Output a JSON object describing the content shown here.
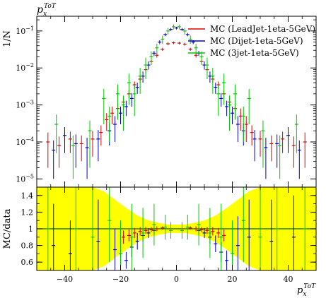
{
  "chart_data": [
    {
      "type": "scatter",
      "title": "p_x^ToT",
      "title_main": "p",
      "title_sub": "x",
      "title_sup": "ToT",
      "ylabel": "1/N",
      "yscale": "log",
      "xlim": [
        -50,
        50
      ],
      "ylim": [
        6e-06,
        0.25
      ],
      "y_ticks": [
        {
          "value": 0.1,
          "label_base": "10",
          "label_exp": "−1"
        },
        {
          "value": 0.01,
          "label_base": "10",
          "label_exp": "−2"
        },
        {
          "value": 0.001,
          "label_base": "10",
          "label_exp": "−3"
        },
        {
          "value": 0.0001,
          "label_base": "10",
          "label_exp": "−4"
        },
        {
          "value": 1e-05,
          "label_base": "10",
          "label_exp": "−5"
        }
      ],
      "legend_position": "top-right",
      "series": [
        {
          "name": "MC (LeadJet-1eta-5GeV)",
          "color": "#e00000",
          "points": [
            [
              -46,
              0.0001,
              8e-05
            ],
            [
              -42,
              8e-05,
              6e-05
            ],
            [
              -38,
              0.00012,
              7e-05
            ],
            [
              -34,
              9e-05,
              6e-05
            ],
            [
              -30,
              0.00012,
              8e-05
            ],
            [
              -27,
              0.00018,
              0.0001
            ],
            [
              -25,
              0.0004,
              0.0002
            ],
            [
              -23,
              0.0006,
              0.0003
            ],
            [
              -21,
              0.0008,
              0.0003
            ],
            [
              -19,
              0.0012,
              0.0004
            ],
            [
              -17,
              0.002,
              0.0005
            ],
            [
              -15,
              0.0035,
              0.0008
            ],
            [
              -13,
              0.005,
              0.001
            ],
            [
              -11,
              0.009,
              0.0015
            ],
            [
              -9,
              0.015,
              0.002
            ],
            [
              -7,
              0.022,
              0.003
            ],
            [
              -5,
              0.032,
              0.003
            ],
            [
              -3,
              0.045,
              0.004
            ],
            [
              -1,
              0.048,
              0.004
            ],
            [
              1,
              0.047,
              0.004
            ],
            [
              3,
              0.044,
              0.004
            ],
            [
              5,
              0.032,
              0.003
            ],
            [
              7,
              0.022,
              0.003
            ],
            [
              9,
              0.015,
              0.002
            ],
            [
              11,
              0.009,
              0.0015
            ],
            [
              13,
              0.005,
              0.001
            ],
            [
              15,
              0.0035,
              0.0008
            ],
            [
              17,
              0.002,
              0.0005
            ],
            [
              19,
              0.0012,
              0.0004
            ],
            [
              21,
              0.0008,
              0.0003
            ],
            [
              23,
              0.0005,
              0.0003
            ],
            [
              25,
              0.0003,
              0.0002
            ],
            [
              27,
              0.00018,
              0.0001
            ],
            [
              30,
              0.00012,
              8e-05
            ],
            [
              34,
              9e-05,
              6e-05
            ],
            [
              38,
              0.00012,
              7e-05
            ],
            [
              42,
              8e-05,
              6e-05
            ],
            [
              46,
              0.0001,
              8e-05
            ]
          ]
        },
        {
          "name": "MC (Dijet-1eta-5GeV)",
          "color": "#0000c8",
          "points": [
            [
              -44,
              6e-05,
              5e-05
            ],
            [
              -40,
              0.00015,
              0.0001
            ],
            [
              -36,
              9e-05,
              7e-05
            ],
            [
              -32,
              7e-05,
              6e-05
            ],
            [
              -28,
              0.00012,
              9e-05
            ],
            [
              -24,
              0.0002,
              0.00012
            ],
            [
              -22,
              0.0003,
              0.0002
            ],
            [
              -20,
              0.0006,
              0.0003
            ],
            [
              -18,
              0.0009,
              0.0004
            ],
            [
              -16,
              0.0015,
              0.0006
            ],
            [
              -14,
              0.003,
              0.001
            ],
            [
              -12,
              0.006,
              0.002
            ],
            [
              -10,
              0.012,
              0.003
            ],
            [
              -8,
              0.025,
              0.004
            ],
            [
              -6,
              0.05,
              0.006
            ],
            [
              -4,
              0.08,
              0.008
            ],
            [
              -2,
              0.11,
              0.01
            ],
            [
              0,
              0.12,
              0.01
            ],
            [
              2,
              0.11,
              0.01
            ],
            [
              4,
              0.08,
              0.008
            ],
            [
              6,
              0.05,
              0.006
            ],
            [
              8,
              0.025,
              0.004
            ],
            [
              10,
              0.012,
              0.003
            ],
            [
              12,
              0.006,
              0.002
            ],
            [
              14,
              0.003,
              0.001
            ],
            [
              16,
              0.0015,
              0.0006
            ],
            [
              18,
              0.0009,
              0.0004
            ],
            [
              20,
              0.0006,
              0.0003
            ],
            [
              22,
              0.0003,
              0.0002
            ],
            [
              24,
              0.0002,
              0.00012
            ],
            [
              28,
              0.00012,
              9e-05
            ],
            [
              32,
              7e-05,
              6e-05
            ],
            [
              36,
              9e-05,
              7e-05
            ],
            [
              40,
              0.00015,
              0.0001
            ],
            [
              44,
              6e-05,
              5e-05
            ]
          ]
        },
        {
          "name": "MC (3jet-1eta-5GeV)",
          "color": "#00c800",
          "points": [
            [
              -43,
              0.0003,
              0.00025
            ],
            [
              -37,
              8e-05,
              7e-05
            ],
            [
              -31,
              0.0002,
              0.00018
            ],
            [
              -26,
              0.0015,
              0.0012
            ],
            [
              -24,
              0.0005,
              0.0004
            ],
            [
              -21,
              0.002,
              0.0016
            ],
            [
              -19,
              0.001,
              0.0008
            ],
            [
              -17,
              0.004,
              0.003
            ],
            [
              -15,
              0.002,
              0.0015
            ],
            [
              -13,
              0.006,
              0.004
            ],
            [
              -11,
              0.012,
              0.007
            ],
            [
              -9,
              0.02,
              0.008
            ],
            [
              -7,
              0.035,
              0.01
            ],
            [
              -5,
              0.06,
              0.015
            ],
            [
              -3,
              0.1,
              0.02
            ],
            [
              -1,
              0.13,
              0.02
            ],
            [
              1,
              0.13,
              0.02
            ],
            [
              3,
              0.1,
              0.02
            ],
            [
              5,
              0.06,
              0.015
            ],
            [
              7,
              0.035,
              0.01
            ],
            [
              9,
              0.02,
              0.008
            ],
            [
              11,
              0.012,
              0.007
            ],
            [
              13,
              0.006,
              0.004
            ],
            [
              15,
              0.002,
              0.0015
            ],
            [
              17,
              0.004,
              0.003
            ],
            [
              19,
              0.001,
              0.0008
            ],
            [
              21,
              0.002,
              0.0016
            ],
            [
              24,
              0.0005,
              0.0004
            ],
            [
              26,
              0.0015,
              0.0012
            ],
            [
              31,
              0.0002,
              0.00018
            ],
            [
              37,
              8e-05,
              7e-05
            ],
            [
              43,
              0.0003,
              0.00025
            ]
          ]
        }
      ]
    },
    {
      "type": "scatter",
      "ylabel": "MC/data",
      "xlabel": "p_x^ToT",
      "xlabel_main": "p",
      "xlabel_sub": "x",
      "xlabel_sup": "ToT",
      "xlim": [
        -50,
        50
      ],
      "ylim": [
        0.5,
        1.5
      ],
      "x_ticks": [
        -40,
        -20,
        0,
        20,
        40
      ],
      "y_ticks": [
        0.6,
        0.8,
        1,
        1.2,
        1.4
      ],
      "reference_line": 1,
      "reference_color": "#006400",
      "band_color": "#ffff00",
      "band": [
        [
          -50,
          0.5,
          1.5
        ],
        [
          -40,
          0.5,
          1.5
        ],
        [
          -30,
          0.5,
          1.5
        ],
        [
          -26,
          0.55,
          1.45
        ],
        [
          -22,
          0.65,
          1.35
        ],
        [
          -18,
          0.75,
          1.25
        ],
        [
          -14,
          0.84,
          1.16
        ],
        [
          -10,
          0.9,
          1.1
        ],
        [
          -6,
          0.93,
          1.07
        ],
        [
          -3,
          0.95,
          1.05
        ],
        [
          0,
          0.95,
          1.05
        ],
        [
          3,
          0.95,
          1.05
        ],
        [
          6,
          0.93,
          1.07
        ],
        [
          10,
          0.9,
          1.1
        ],
        [
          14,
          0.84,
          1.16
        ],
        [
          18,
          0.75,
          1.25
        ],
        [
          22,
          0.65,
          1.35
        ],
        [
          26,
          0.55,
          1.45
        ],
        [
          30,
          0.5,
          1.5
        ],
        [
          40,
          0.5,
          1.5
        ],
        [
          50,
          0.5,
          1.5
        ]
      ],
      "series": [
        {
          "name": "MC (LeadJet-1eta-5GeV)",
          "color": "#e00000",
          "points": [
            [
              -19,
              0.9,
              0.08
            ],
            [
              -17,
              0.92,
              0.07
            ],
            [
              -15,
              0.95,
              0.06
            ],
            [
              -13,
              0.97,
              0.05
            ],
            [
              -11,
              0.98,
              0.04
            ],
            [
              -9,
              0.99,
              0.03
            ],
            [
              -7,
              1.0,
              0.03
            ],
            [
              -5,
              1.01,
              0.02
            ],
            [
              5,
              1.01,
              0.02
            ],
            [
              7,
              1.0,
              0.03
            ],
            [
              9,
              0.99,
              0.03
            ],
            [
              11,
              0.98,
              0.04
            ],
            [
              13,
              0.97,
              0.05
            ],
            [
              15,
              0.95,
              0.06
            ],
            [
              17,
              0.92,
              0.07
            ]
          ]
        },
        {
          "name": "MC (Dijet-1eta-5GeV)",
          "color": "#0000c8",
          "points": [
            [
              -44,
              0.8,
              0.5
            ],
            [
              -38,
              0.7,
              0.4
            ],
            [
              -28,
              0.85,
              0.5
            ],
            [
              -22,
              0.75,
              0.25
            ],
            [
              -18,
              0.62,
              0.1
            ],
            [
              -16,
              0.78,
              0.12
            ],
            [
              -14,
              0.85,
              0.1
            ],
            [
              -12,
              0.92,
              0.08
            ],
            [
              -10,
              0.95,
              0.06
            ],
            [
              -8,
              0.98,
              0.05
            ],
            [
              8,
              0.98,
              0.05
            ],
            [
              10,
              0.95,
              0.06
            ],
            [
              12,
              0.9,
              0.08
            ],
            [
              14,
              0.82,
              0.1
            ],
            [
              16,
              0.72,
              0.12
            ],
            [
              18,
              0.62,
              0.12
            ],
            [
              22,
              0.8,
              0.35
            ],
            [
              26,
              0.9,
              0.45
            ],
            [
              34,
              0.85,
              0.5
            ],
            [
              42,
              0.9,
              0.5
            ]
          ]
        },
        {
          "name": "MC (3jet-1eta-5GeV)",
          "color": "#00c800",
          "points": [
            [
              -46,
              1.0,
              0.6
            ],
            [
              -36,
              1.0,
              0.6
            ],
            [
              -30,
              0.9,
              0.6
            ],
            [
              -24,
              1.1,
              0.5
            ],
            [
              -20,
              0.7,
              0.4
            ],
            [
              -16,
              0.9,
              0.4
            ],
            [
              -12,
              0.95,
              0.3
            ],
            [
              -8,
              1.05,
              0.25
            ],
            [
              -4,
              1.02,
              0.15
            ],
            [
              -2,
              0.98,
              0.1
            ],
            [
              2,
              0.98,
              0.1
            ],
            [
              4,
              1.02,
              0.15
            ],
            [
              8,
              1.05,
              0.25
            ],
            [
              12,
              0.95,
              0.3
            ],
            [
              16,
              0.9,
              0.4
            ],
            [
              20,
              0.7,
              0.4
            ],
            [
              24,
              1.1,
              0.5
            ],
            [
              30,
              0.9,
              0.6
            ],
            [
              36,
              1.0,
              0.6
            ],
            [
              46,
              1.0,
              0.6
            ]
          ]
        }
      ]
    }
  ]
}
